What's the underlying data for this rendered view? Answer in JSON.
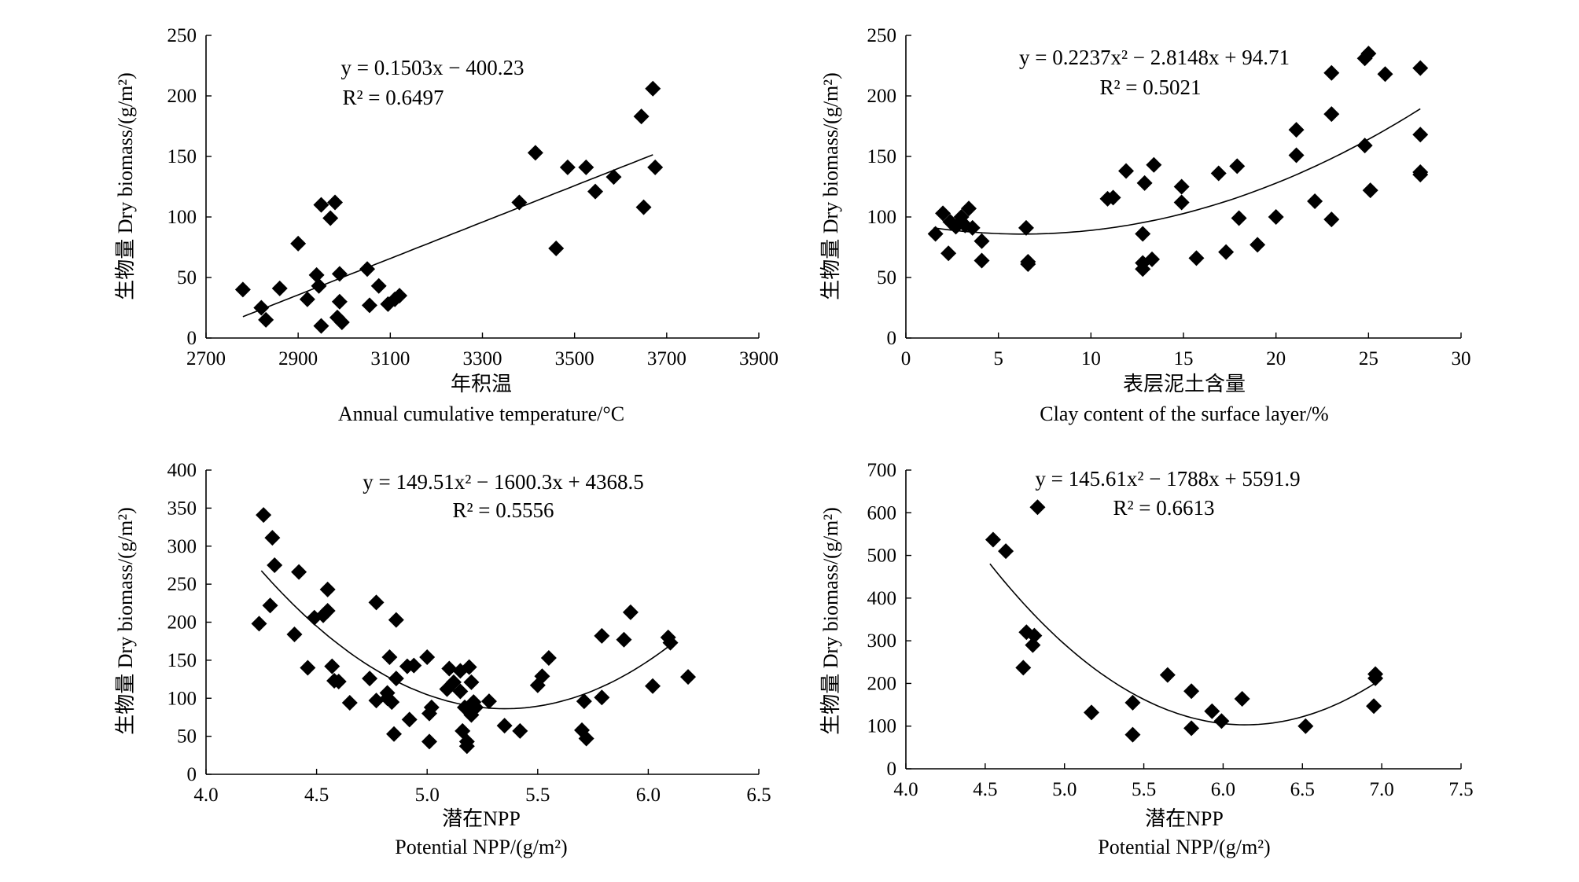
{
  "chart_data": [
    {
      "type": "scatter",
      "ylabel": "生物量 Dry biomass/(g/m²)",
      "xlabel_cn": "年积温",
      "xlabel_en": "Annual cumulative temperature/°C",
      "xlim": [
        2700,
        3900
      ],
      "ylim": [
        0,
        250
      ],
      "xticks": [
        "2700",
        "2900",
        "3100",
        "3300",
        "3500",
        "3700",
        "3900"
      ],
      "yticks": [
        "0",
        "50",
        "100",
        "150",
        "200",
        "250"
      ],
      "equation": "y = 0.1503x − 400.23",
      "r2": "R² = 0.6497",
      "fit": {
        "type": "linear",
        "coef": [
          0.1503,
          -400.23
        ],
        "range": [
          2780,
          3670
        ]
      },
      "points": [
        [
          2780,
          40
        ],
        [
          2820,
          25
        ],
        [
          2830,
          15
        ],
        [
          2860,
          41
        ],
        [
          2900,
          78
        ],
        [
          2920,
          32
        ],
        [
          2940,
          52
        ],
        [
          2945,
          43
        ],
        [
          2950,
          110
        ],
        [
          2950,
          10
        ],
        [
          2970,
          99
        ],
        [
          2980,
          112
        ],
        [
          2985,
          17
        ],
        [
          2990,
          53
        ],
        [
          2990,
          30
        ],
        [
          2995,
          13
        ],
        [
          3050,
          57
        ],
        [
          3055,
          27
        ],
        [
          3075,
          43
        ],
        [
          3095,
          28
        ],
        [
          3110,
          32
        ],
        [
          3120,
          35
        ],
        [
          3380,
          112
        ],
        [
          3415,
          153
        ],
        [
          3460,
          74
        ],
        [
          3485,
          141
        ],
        [
          3525,
          141
        ],
        [
          3545,
          121
        ],
        [
          3585,
          133
        ],
        [
          3645,
          183
        ],
        [
          3650,
          108
        ],
        [
          3670,
          206
        ],
        [
          3675,
          141
        ]
      ]
    },
    {
      "type": "scatter",
      "ylabel": "生物量 Dry biomass/(g/m²)",
      "xlabel_cn": "表层泥土含量",
      "xlabel_en": "Clay content of the surface layer/%",
      "xlim": [
        0,
        30
      ],
      "ylim": [
        0,
        250
      ],
      "xticks": [
        "0",
        "5",
        "10",
        "15",
        "20",
        "25",
        "30"
      ],
      "yticks": [
        "0",
        "50",
        "100",
        "150",
        "200",
        "250"
      ],
      "equation": "y = 0.2237x² − 2.8148x + 94.71",
      "r2": "R² = 0.5021",
      "fit": {
        "type": "quadratic",
        "coef": [
          0.2237,
          -2.8148,
          94.71
        ],
        "range": [
          1.5,
          27.8
        ]
      },
      "points": [
        [
          1.6,
          86
        ],
        [
          2.0,
          103
        ],
        [
          2.3,
          70
        ],
        [
          2.4,
          96
        ],
        [
          2.7,
          92
        ],
        [
          3.0,
          100
        ],
        [
          3.2,
          93
        ],
        [
          3.4,
          107
        ],
        [
          3.6,
          91
        ],
        [
          4.1,
          80
        ],
        [
          4.1,
          64
        ],
        [
          6.5,
          91
        ],
        [
          6.6,
          63
        ],
        [
          6.6,
          61
        ],
        [
          10.9,
          115
        ],
        [
          11.2,
          116
        ],
        [
          11.9,
          138
        ],
        [
          12.8,
          57
        ],
        [
          12.8,
          62
        ],
        [
          12.8,
          86
        ],
        [
          12.9,
          128
        ],
        [
          13.3,
          65
        ],
        [
          13.4,
          143
        ],
        [
          14.9,
          125
        ],
        [
          14.9,
          112
        ],
        [
          15.7,
          66
        ],
        [
          16.9,
          136
        ],
        [
          17.3,
          71
        ],
        [
          17.9,
          142
        ],
        [
          18.0,
          99
        ],
        [
          19.0,
          77
        ],
        [
          20.0,
          100
        ],
        [
          21.1,
          172
        ],
        [
          21.1,
          151
        ],
        [
          22.1,
          113
        ],
        [
          23.0,
          219
        ],
        [
          23.0,
          185
        ],
        [
          23.0,
          98
        ],
        [
          24.8,
          231
        ],
        [
          24.8,
          159
        ],
        [
          25.0,
          235
        ],
        [
          25.1,
          122
        ],
        [
          25.9,
          218
        ],
        [
          27.8,
          223
        ],
        [
          27.8,
          168
        ],
        [
          27.8,
          137
        ],
        [
          27.8,
          135
        ]
      ]
    },
    {
      "type": "scatter",
      "ylabel": "生物量 Dry biomass/(g/m²)",
      "xlabel_cn": "潜在NPP",
      "xlabel_en": "Potential NPP/(g/m²)",
      "xlim": [
        4.0,
        6.5
      ],
      "ylim": [
        0,
        400
      ],
      "xticks": [
        "4.0",
        "4.5",
        "5.0",
        "5.5",
        "6.0",
        "6.5"
      ],
      "yticks": [
        "0",
        "50",
        "100",
        "150",
        "200",
        "250",
        "300",
        "350",
        "400"
      ],
      "equation": "y = 149.51x² − 1600.3x + 4368.5",
      "r2": "R² = 0.5556",
      "fit": {
        "type": "quadratic",
        "coef": [
          149.51,
          -1600.3,
          4368.5
        ],
        "range": [
          4.25,
          6.12
        ]
      },
      "points": [
        [
          4.24,
          198
        ],
        [
          4.26,
          341
        ],
        [
          4.29,
          222
        ],
        [
          4.3,
          311
        ],
        [
          4.31,
          275
        ],
        [
          4.4,
          184
        ],
        [
          4.42,
          266
        ],
        [
          4.46,
          140
        ],
        [
          4.49,
          206
        ],
        [
          4.53,
          209
        ],
        [
          4.55,
          215
        ],
        [
          4.55,
          243
        ],
        [
          4.57,
          142
        ],
        [
          4.58,
          123
        ],
        [
          4.6,
          122
        ],
        [
          4.65,
          94
        ],
        [
          4.74,
          126
        ],
        [
          4.77,
          226
        ],
        [
          4.77,
          97
        ],
        [
          4.82,
          100
        ],
        [
          4.82,
          107
        ],
        [
          4.83,
          154
        ],
        [
          4.84,
          95
        ],
        [
          4.85,
          53
        ],
        [
          4.86,
          203
        ],
        [
          4.86,
          126
        ],
        [
          4.91,
          142
        ],
        [
          4.92,
          72
        ],
        [
          4.94,
          143
        ],
        [
          5.0,
          154
        ],
        [
          5.01,
          80
        ],
        [
          5.01,
          43
        ],
        [
          5.02,
          88
        ],
        [
          5.09,
          112
        ],
        [
          5.1,
          139
        ],
        [
          5.12,
          121
        ],
        [
          5.15,
          109
        ],
        [
          5.15,
          136
        ],
        [
          5.16,
          57
        ],
        [
          5.17,
          88
        ],
        [
          5.18,
          43
        ],
        [
          5.18,
          37
        ],
        [
          5.19,
          141
        ],
        [
          5.2,
          121
        ],
        [
          5.2,
          78
        ],
        [
          5.21,
          95
        ],
        [
          5.22,
          88
        ],
        [
          5.28,
          96
        ],
        [
          5.35,
          64
        ],
        [
          5.42,
          57
        ],
        [
          5.5,
          117
        ],
        [
          5.52,
          129
        ],
        [
          5.55,
          153
        ],
        [
          5.7,
          58
        ],
        [
          5.71,
          96
        ],
        [
          5.72,
          47
        ],
        [
          5.79,
          182
        ],
        [
          5.79,
          101
        ],
        [
          5.89,
          177
        ],
        [
          5.92,
          213
        ],
        [
          6.02,
          116
        ],
        [
          6.09,
          180
        ],
        [
          6.1,
          173
        ],
        [
          6.18,
          128
        ]
      ]
    },
    {
      "type": "scatter",
      "ylabel": "生物量 Dry biomass/(g/m²)",
      "xlabel_cn": "潜在NPP",
      "xlabel_en": "Potential NPP/(g/m²)",
      "xlim": [
        4.0,
        7.5
      ],
      "ylim": [
        0,
        700
      ],
      "xticks": [
        "4.0",
        "4.5",
        "5.0",
        "5.5",
        "6.0",
        "6.5",
        "7.0",
        "7.5"
      ],
      "yticks": [
        "0",
        "100",
        "200",
        "300",
        "400",
        "500",
        "600",
        "700"
      ],
      "equation": "y = 145.61x² − 1788x + 5591.9",
      "r2": "R² = 0.6613",
      "fit": {
        "type": "quadratic",
        "coef": [
          145.61,
          -1788,
          5591.9
        ],
        "range": [
          4.53,
          6.95
        ]
      },
      "points": [
        [
          4.55,
          537
        ],
        [
          4.63,
          510
        ],
        [
          4.74,
          237
        ],
        [
          4.76,
          320
        ],
        [
          4.8,
          290
        ],
        [
          4.81,
          312
        ],
        [
          4.83,
          613
        ],
        [
          5.17,
          132
        ],
        [
          5.43,
          80
        ],
        [
          5.43,
          155
        ],
        [
          5.65,
          220
        ],
        [
          5.8,
          95
        ],
        [
          5.8,
          182
        ],
        [
          5.93,
          135
        ],
        [
          5.99,
          112
        ],
        [
          6.12,
          164
        ],
        [
          6.52,
          100
        ],
        [
          6.95,
          147
        ],
        [
          6.96,
          222
        ],
        [
          6.96,
          212
        ]
      ]
    }
  ]
}
